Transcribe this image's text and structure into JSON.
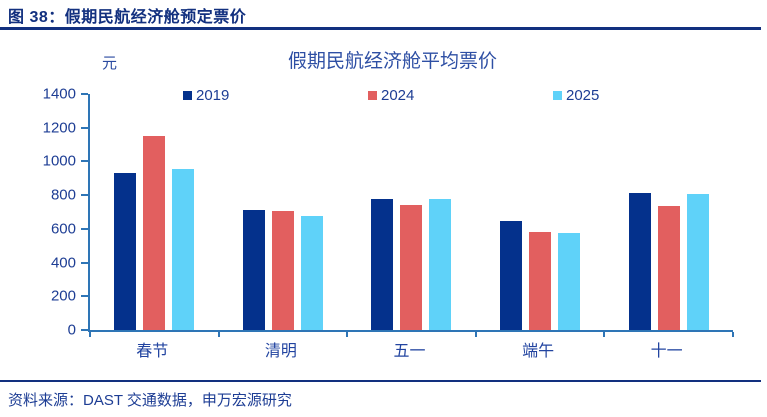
{
  "page": {
    "figure_title": "图 38：假期民航经济舱预定票价",
    "source_note": "资料来源：DAST 交通数据，申万宏源研究"
  },
  "colors": {
    "accent_navy": "#12307F",
    "axis_blue": "#2E75B6",
    "text_navy": "#1D3D94"
  },
  "chart_data": {
    "type": "bar",
    "title": "假期民航经济舱平均票价",
    "unit_label": "元",
    "categories": [
      "春节",
      "清明",
      "五一",
      "端午",
      "十一"
    ],
    "series": [
      {
        "name": "2019",
        "color": "#04318C",
        "values": [
          930,
          710,
          775,
          645,
          815
        ]
      },
      {
        "name": "2024",
        "color": "#E25F5F",
        "values": [
          1150,
          705,
          740,
          580,
          735
        ]
      },
      {
        "name": "2025",
        "color": "#5FD2F9",
        "values": [
          955,
          675,
          780,
          575,
          805
        ]
      }
    ],
    "ylim": [
      0,
      1400
    ],
    "ytick_step": 200,
    "grid": false,
    "legend_position": "top"
  }
}
